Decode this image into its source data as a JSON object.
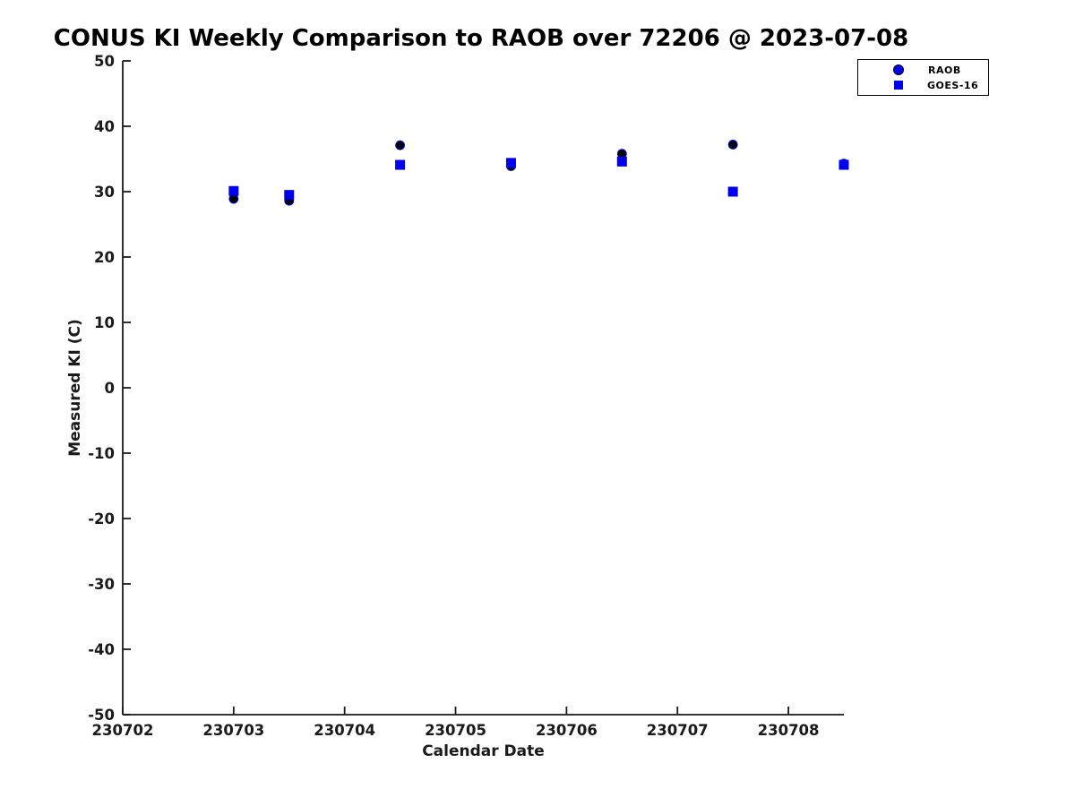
{
  "page": {
    "background": "#ffffff"
  },
  "chart_data": {
    "type": "scatter",
    "title": "CONUS KI Weekly Comparison to RAOB over 72206 @ 2023-07-08",
    "xlabel": "Calendar Date",
    "ylabel": "Measured KI (C)",
    "xlim": [
      230702,
      230708.5
    ],
    "ylim": [
      -50,
      50
    ],
    "xticks": [
      230702,
      230703,
      230704,
      230705,
      230706,
      230707,
      230708
    ],
    "yticks": [
      -50,
      -40,
      -30,
      -20,
      -10,
      0,
      10,
      20,
      30,
      40,
      50
    ],
    "grid": false,
    "legend_position": "top-right",
    "axis_color": "#1a1a1a",
    "x": [
      230703.0,
      230703.5,
      230704.5,
      230705.5,
      230706.5,
      230707.5,
      230708.5
    ],
    "series": [
      {
        "name": "RAOB",
        "marker": "circle",
        "face": "#000000",
        "edge": "#0000ee",
        "legend_face": "#0000ee",
        "legend_edge": "#000000",
        "values": [
          28.9,
          28.6,
          37.1,
          33.9,
          35.8,
          37.2,
          34.3
        ]
      },
      {
        "name": "GOES-16",
        "marker": "square",
        "face": "#0000ee",
        "edge": "#0000ee",
        "legend_face": "#0000ee",
        "legend_edge": "#0000ee",
        "values": [
          30.1,
          29.5,
          34.1,
          34.4,
          34.6,
          30.0,
          34.1
        ]
      }
    ]
  }
}
